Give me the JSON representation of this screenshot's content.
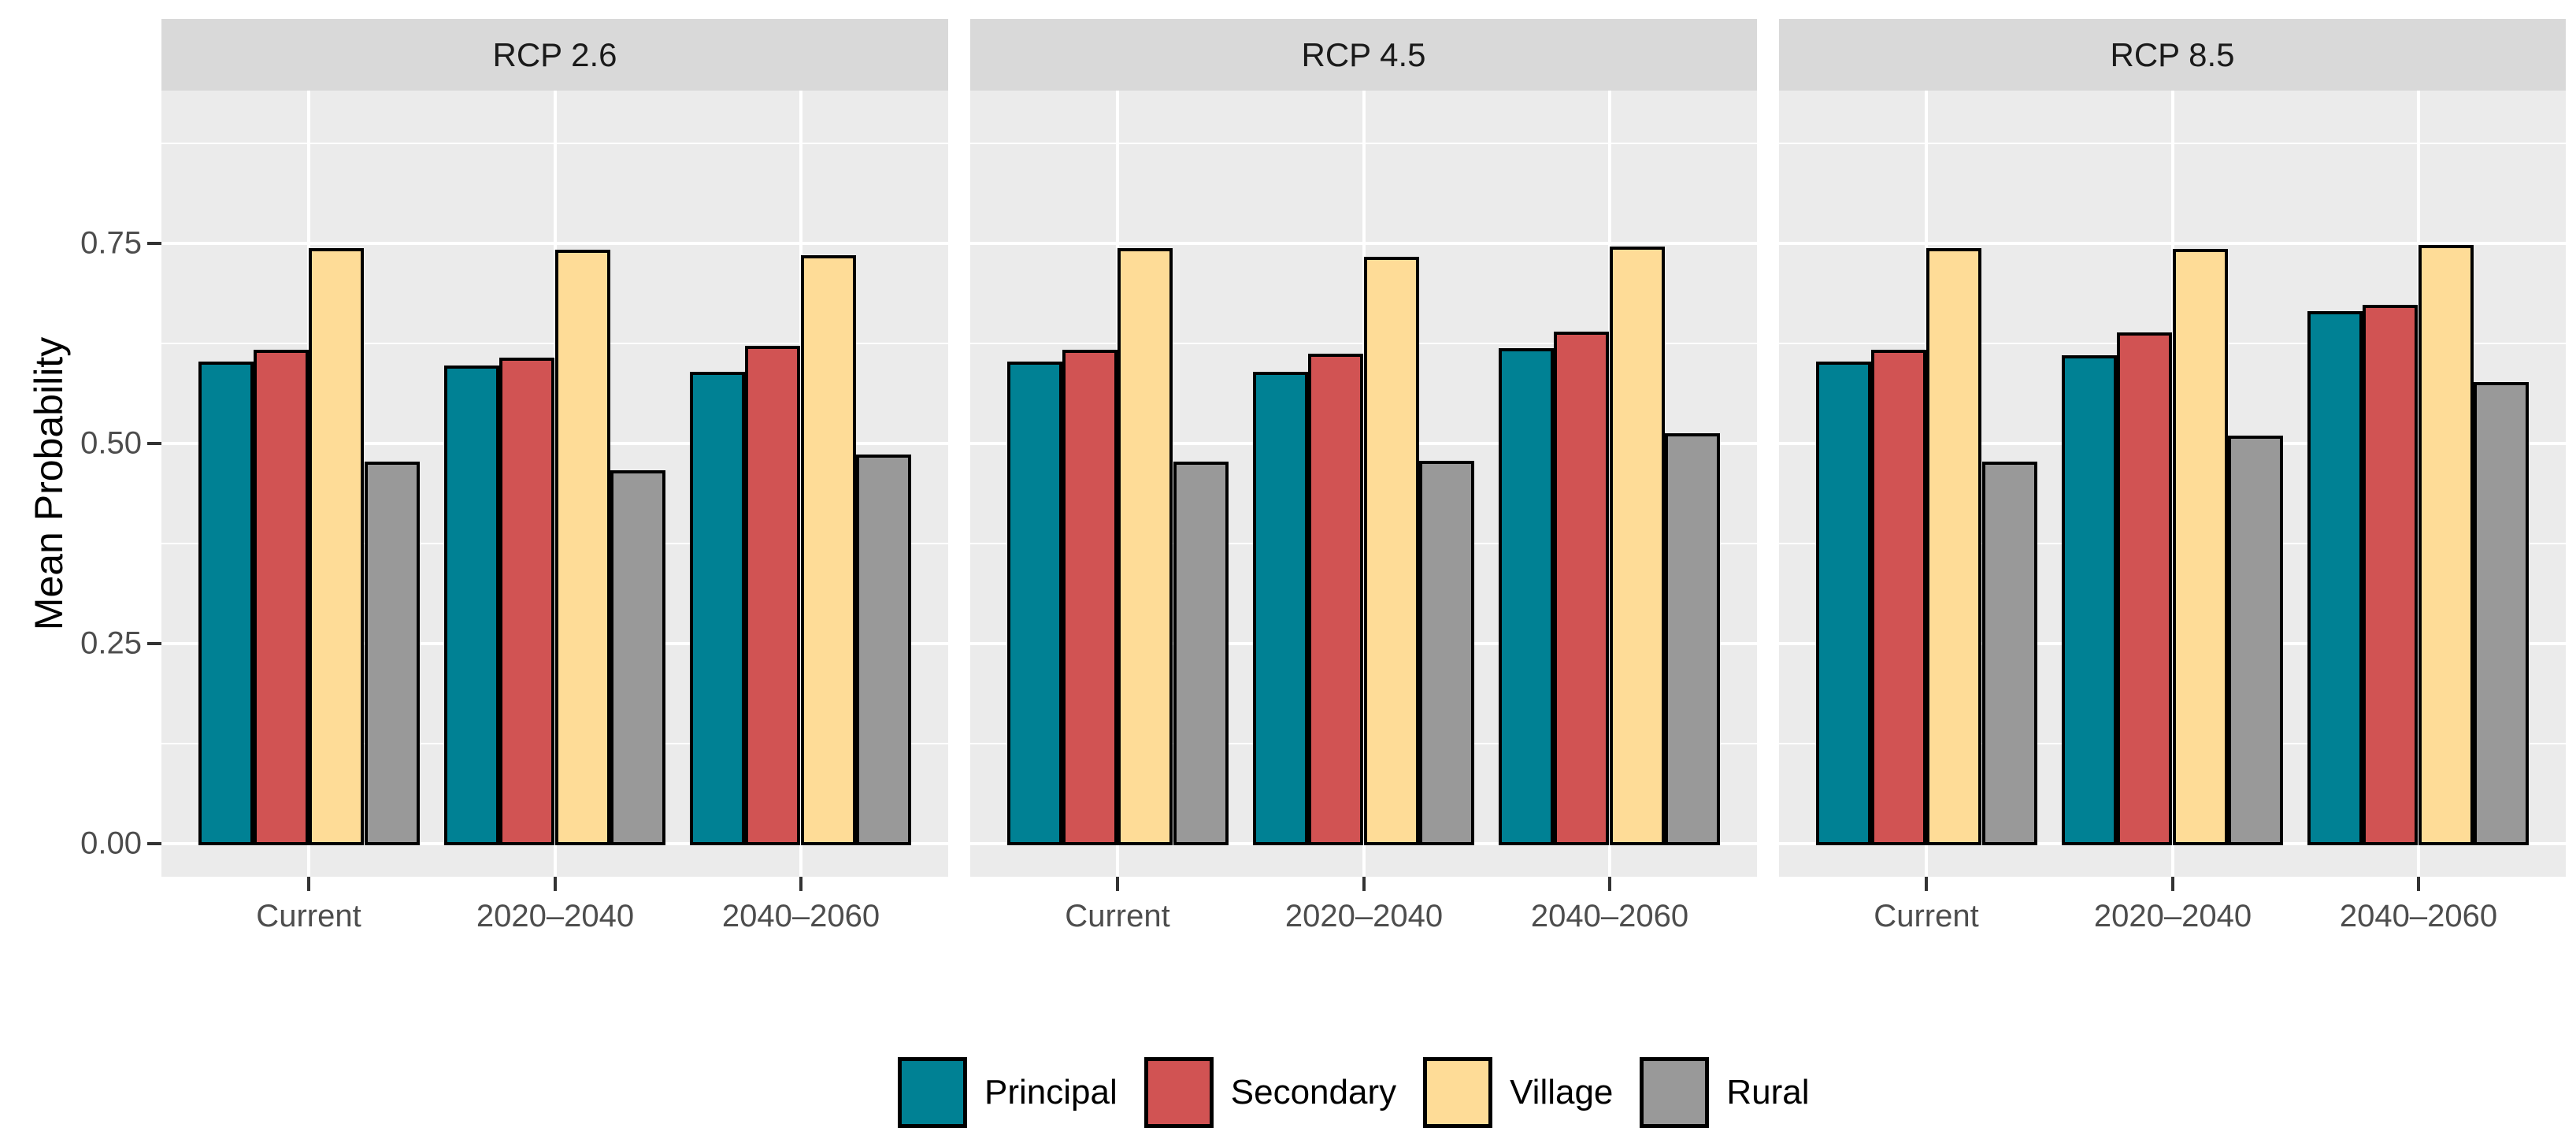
{
  "chart_data": {
    "type": "bar",
    "title": "",
    "xlabel": "",
    "ylabel": "Mean Probability",
    "facets": [
      "RCP 2.6",
      "RCP 4.5",
      "RCP 8.5"
    ],
    "categories": [
      "Current",
      "2020–2040",
      "2040–2060"
    ],
    "y_ticks": [
      {
        "value": 0.0,
        "label": "0.00"
      },
      {
        "value": 0.25,
        "label": "0.25"
      },
      {
        "value": 0.5,
        "label": "0.50"
      },
      {
        "value": 0.75,
        "label": "0.75"
      }
    ],
    "y_minor_ticks": [
      0.125,
      0.375,
      0.625,
      0.875
    ],
    "ylim": [
      -0.041,
      0.941
    ],
    "grid": true,
    "legend_position": "bottom",
    "series": [
      {
        "name": "Principal",
        "color": "#008194",
        "values_by_facet": [
          [
            0.6,
            0.595,
            0.588
          ],
          [
            0.6,
            0.588,
            0.617
          ],
          [
            0.6,
            0.608,
            0.663
          ]
        ]
      },
      {
        "name": "Secondary",
        "color": "#d15353",
        "values_by_facet": [
          [
            0.615,
            0.605,
            0.62
          ],
          [
            0.615,
            0.61,
            0.638
          ],
          [
            0.615,
            0.637,
            0.671
          ]
        ]
      },
      {
        "name": "Village",
        "color": "#fedc97",
        "values_by_facet": [
          [
            0.742,
            0.74,
            0.733
          ],
          [
            0.742,
            0.731,
            0.744
          ],
          [
            0.742,
            0.741,
            0.746
          ]
        ]
      },
      {
        "name": "Rural",
        "color": "#999999",
        "values_by_facet": [
          [
            0.475,
            0.465,
            0.484
          ],
          [
            0.475,
            0.476,
            0.511
          ],
          [
            0.475,
            0.508,
            0.575
          ]
        ]
      }
    ],
    "bar_outline_color": "#000000",
    "colors": {
      "panel_bg": "#ebebeb",
      "strip_bg": "#d9d9d9",
      "grid": "#ffffff",
      "axis_text": "#4d4d4d",
      "tick_mark": "#333333",
      "strip_text": "#1a1a1a",
      "legend_text": "#000000",
      "background": "#ffffff"
    }
  }
}
